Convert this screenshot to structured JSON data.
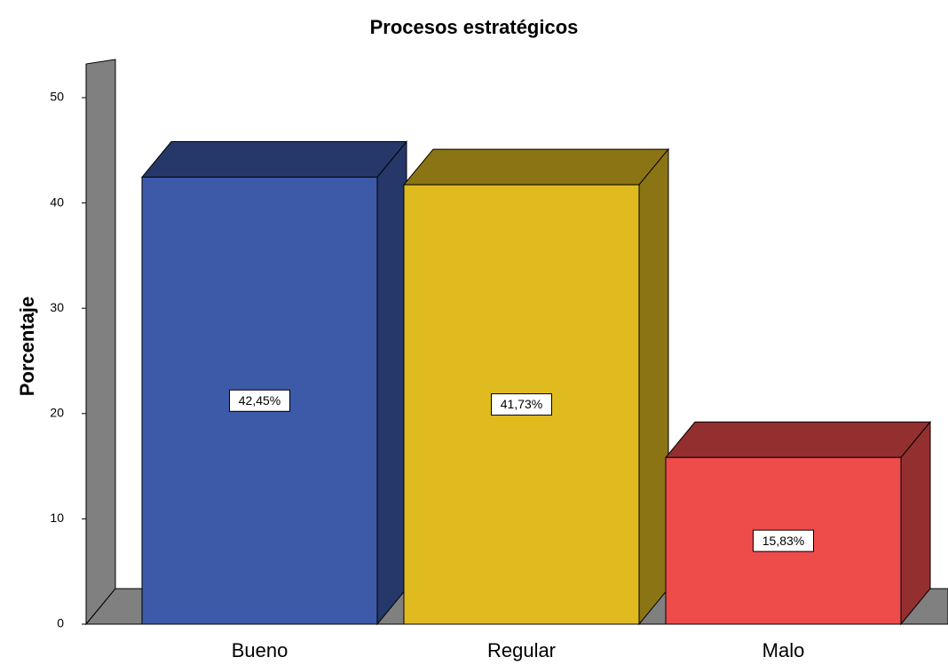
{
  "chart_data": {
    "type": "bar3d",
    "title": "Procesos estratégicos",
    "ylabel": "Porcentaje",
    "categories": [
      "Bueno",
      "Regular",
      "Malo"
    ],
    "values": [
      42.45,
      41.73,
      15.83
    ],
    "value_labels": [
      "42,45%",
      "41,73%",
      "15,83%"
    ],
    "colors": [
      "#3d5aa9",
      "#e0bb20",
      "#ee4b4b"
    ],
    "ylim": [
      0,
      50
    ],
    "yticks": [
      0,
      10,
      20,
      30,
      40,
      50
    ]
  }
}
